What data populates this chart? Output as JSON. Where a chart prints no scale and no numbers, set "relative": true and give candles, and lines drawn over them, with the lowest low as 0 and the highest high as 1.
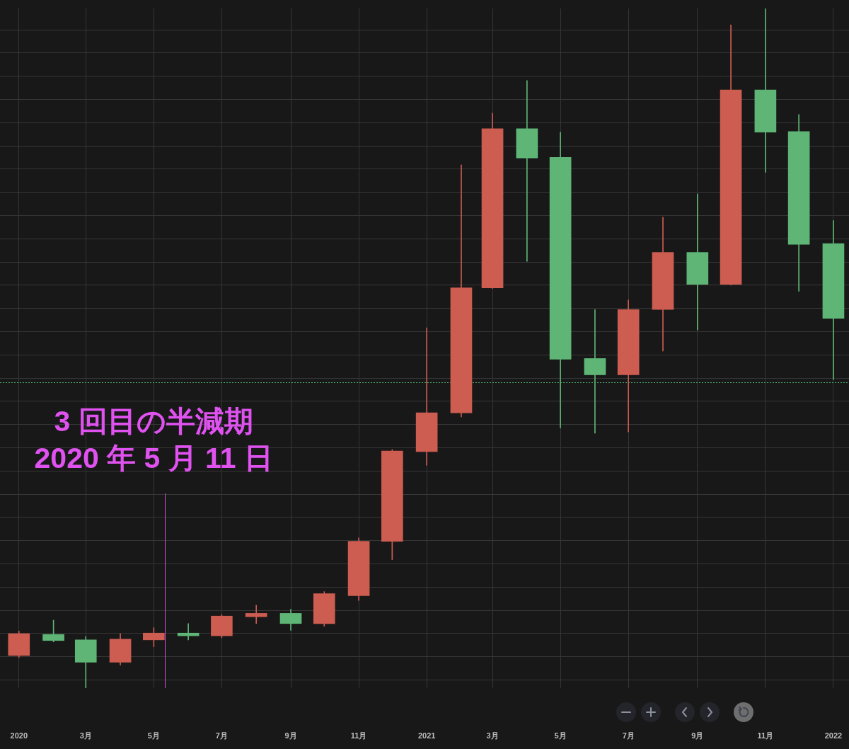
{
  "chart_data": {
    "type": "candlestick",
    "relative": true,
    "x": [
      "2020-01",
      "2020-02",
      "2020-03",
      "2020-04",
      "2020-05",
      "2020-06",
      "2020-07",
      "2020-08",
      "2020-09",
      "2020-10",
      "2020-11",
      "2020-12",
      "2021-01",
      "2021-02",
      "2021-03",
      "2021-04",
      "2021-05",
      "2021-06",
      "2021-07",
      "2021-08",
      "2021-09",
      "2021-10",
      "2021-11",
      "2021-12",
      "2022-01"
    ],
    "ohlc": [
      [
        0.048,
        0.084,
        0.045,
        0.08
      ],
      [
        0.079,
        0.1,
        0.068,
        0.07
      ],
      [
        0.071,
        0.076,
        0.0,
        0.038
      ],
      [
        0.038,
        0.08,
        0.034,
        0.072
      ],
      [
        0.071,
        0.089,
        0.061,
        0.081
      ],
      [
        0.081,
        0.095,
        0.071,
        0.077
      ],
      [
        0.077,
        0.108,
        0.074,
        0.106
      ],
      [
        0.105,
        0.122,
        0.095,
        0.11
      ],
      [
        0.11,
        0.116,
        0.085,
        0.095
      ],
      [
        0.095,
        0.142,
        0.091,
        0.139
      ],
      [
        0.136,
        0.221,
        0.129,
        0.216
      ],
      [
        0.216,
        0.351,
        0.189,
        0.349
      ],
      [
        0.348,
        0.53,
        0.328,
        0.405
      ],
      [
        0.405,
        0.77,
        0.399,
        0.589
      ],
      [
        0.589,
        0.846,
        0.588,
        0.823
      ],
      [
        0.823,
        0.894,
        0.628,
        0.78
      ],
      [
        0.781,
        0.818,
        0.383,
        0.484
      ],
      [
        0.485,
        0.557,
        0.375,
        0.461
      ],
      [
        0.461,
        0.571,
        0.377,
        0.557
      ],
      [
        0.557,
        0.693,
        0.496,
        0.641
      ],
      [
        0.641,
        0.727,
        0.527,
        0.594
      ],
      [
        0.594,
        0.976,
        0.593,
        0.88
      ],
      [
        0.88,
        1.0,
        0.759,
        0.818
      ],
      [
        0.819,
        0.844,
        0.584,
        0.653
      ],
      [
        0.654,
        0.688,
        0.454,
        0.544
      ]
    ],
    "colors": [
      "#cd5c51",
      "#5eb576",
      "#5eb576",
      "#cd5c51",
      "#cd5c51",
      "#5eb576",
      "#cd5c51",
      "#cd5c51",
      "#5eb576",
      "#cd5c51",
      "#cd5c51",
      "#cd5c51",
      "#cd5c51",
      "#cd5c51",
      "#cd5c51",
      "#5eb576",
      "#5eb576",
      "#5eb576",
      "#cd5c51",
      "#cd5c51",
      "#5eb576",
      "#cd5c51",
      "#5eb576",
      "#5eb576",
      "#5eb576"
    ],
    "xlim": [
      "2019-12-15",
      "2022-01-15"
    ],
    "xticks": [
      {
        "value": "2020-01",
        "label": "2020"
      },
      {
        "value": "2020-03",
        "label": "3月"
      },
      {
        "value": "2020-05",
        "label": "5月"
      },
      {
        "value": "2020-07",
        "label": "7月"
      },
      {
        "value": "2020-09",
        "label": "9月"
      },
      {
        "value": "2020-11",
        "label": "11月"
      },
      {
        "value": "2021-01",
        "label": "2021"
      },
      {
        "value": "2021-03",
        "label": "3月"
      },
      {
        "value": "2021-05",
        "label": "5月"
      },
      {
        "value": "2021-07",
        "label": "7月"
      },
      {
        "value": "2021-09",
        "label": "9月"
      },
      {
        "value": "2021-11",
        "label": "11月"
      },
      {
        "value": "2022-01",
        "label": "2022"
      }
    ],
    "grid": true,
    "ref_lines": [
      {
        "axis": "y",
        "value": 0.45,
        "color": "#4caf6a",
        "line_style": "dotted"
      },
      {
        "axis": "x",
        "value": "2020-05-11",
        "color": "#d24fe4"
      }
    ],
    "annotations": [
      "3 回目の半減期",
      "2020 年 5 月 11 日"
    ]
  }
}
